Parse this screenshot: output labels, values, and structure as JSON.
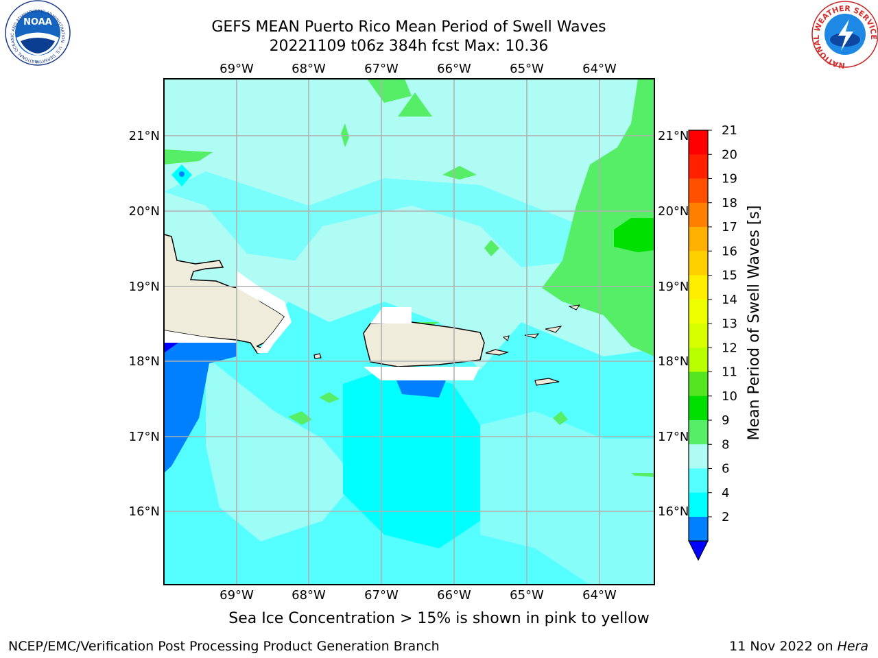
{
  "title_line1": "GEFS MEAN Puerto Rico Mean Period of Swell Waves",
  "title_line2": "20221109 t06z 384h fcst   Max: 10.36",
  "lon_ticks": [
    "69°W",
    "68°W",
    "67°W",
    "66°W",
    "65°W",
    "64°W"
  ],
  "lat_ticks": [
    "21°N",
    "20°N",
    "19°N",
    "18°N",
    "17°N",
    "16°N"
  ],
  "colorbar": {
    "title": "Mean Period of Swell Waves [s]",
    "levels": [
      "21",
      "20",
      "19",
      "18",
      "17",
      "16",
      "15",
      "14",
      "13",
      "12",
      "11",
      "10",
      "9",
      "8",
      "6",
      "4",
      "2"
    ],
    "colors": [
      "#ff0000",
      "#ff2000",
      "#ff5000",
      "#ff8000",
      "#ffb000",
      "#ffd000",
      "#ffee00",
      "#eeff00",
      "#d8ff00",
      "#b8ff00",
      "#55e621",
      "#00e000",
      "#55ee66",
      "#aefcf4",
      "#55ffff",
      "#00ffff",
      "#0080ff"
    ],
    "under_color": "#0000ff"
  },
  "field_colors": {
    "2-4": "#0080ff",
    "4-6": "#00ffff",
    "6-8": "#55ffff",
    "8-9": "#aefcf4",
    "9-10": "#55ee66",
    "10-11": "#00e000",
    "land": "#efecdc",
    "grid": "#b0b0b0"
  },
  "logos": {
    "noaa": "NOAA",
    "noaa_ring": "NATIONAL OCEANIC AND ATMOSPHERIC ADMINISTRATION · U.S. DEPARTMENT OF COMMERCE",
    "nws_ring": "NATIONAL WEATHER SERVICE"
  },
  "sea_ice_note": "Sea Ice Concentration > 15% is shown in pink to yellow",
  "footer_left": "NCEP/EMC/Verification Post Processing Product Generation Branch",
  "footer_date": "11 Nov 2022 on",
  "footer_machine": "Hera"
}
